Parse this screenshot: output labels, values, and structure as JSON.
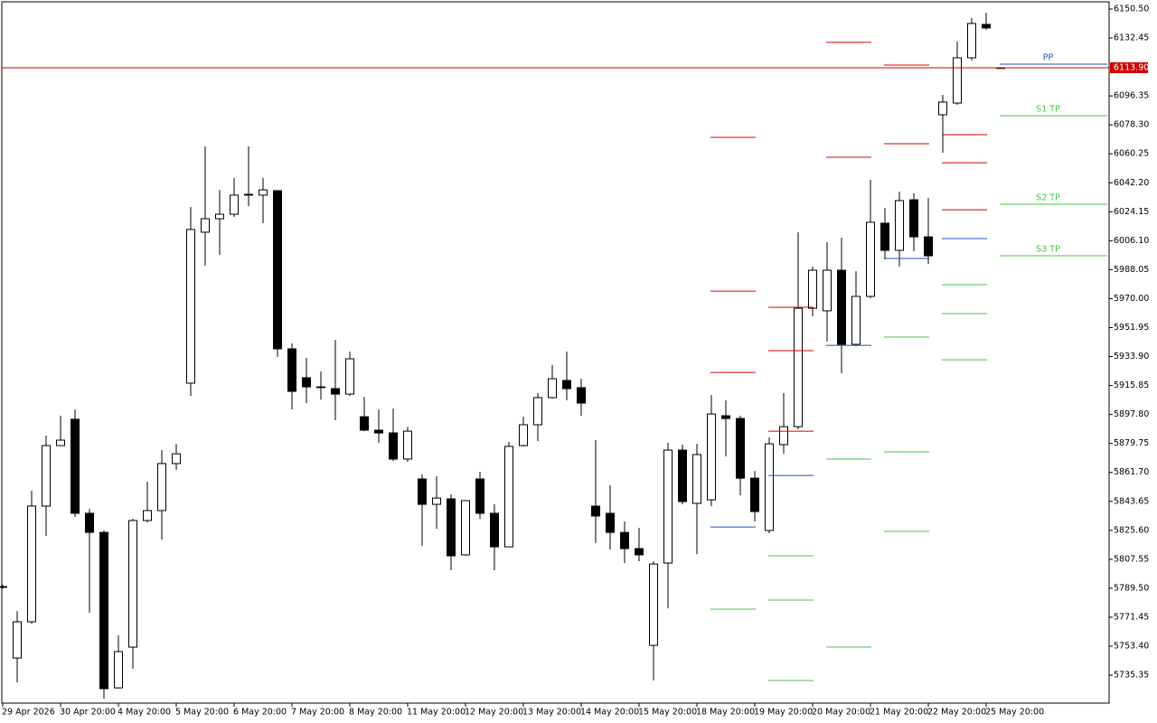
{
  "chart_data": {
    "type": "candlestick",
    "categories": [
      "29 Apr 2026",
      null,
      null,
      null,
      "30 Apr 20:00",
      null,
      null,
      null,
      "4 May 20:00",
      null,
      null,
      null,
      "5 May 20:00",
      null,
      null,
      null,
      "6 May 20:00",
      null,
      null,
      null,
      "7 May 20:00",
      null,
      null,
      null,
      "8 May 20:00",
      null,
      null,
      null,
      "11 May 20:00",
      null,
      null,
      null,
      "12 May 20:00",
      null,
      null,
      null,
      "13 May 20:00",
      null,
      null,
      null,
      "14 May 20:00",
      null,
      null,
      null,
      "15 May 20:00",
      null,
      null,
      null,
      "18 May 20:00",
      null,
      null,
      null,
      "19 May 20:00",
      null,
      null,
      null,
      "20 May 20:00",
      null,
      null,
      null,
      "21 May 20:00",
      null,
      null,
      null,
      "22 May 20:00",
      null,
      null,
      null,
      "25 May 20:00",
      null
    ],
    "open": [
      5790.5,
      5746.0,
      5768.6,
      5840.7,
      5878.4,
      5894.8,
      5836.2,
      5824.3,
      5727.4,
      5752.8,
      5831.7,
      5837.9,
      5867.2,
      5917.3,
      6011.4,
      6019.8,
      6022.6,
      6034.5,
      6034.5,
      6037.3,
      5938.7,
      5920.7,
      5915.0,
      5913.9,
      5910.5,
      5896.4,
      5888.0,
      5886.3,
      5870.0,
      5857.6,
      5841.8,
      5845.2,
      5810.3,
      5857.6,
      5836.2,
      5815.3,
      5878.4,
      5891.4,
      5908.3,
      5919.0,
      5914.5,
      5840.7,
      5836.2,
      5824.3,
      5814.2,
      5753.9,
      5805.2,
      5875.6,
      5842.4,
      5844.6,
      5897.0,
      5895.3,
      5858.1,
      5825.5,
      5879.0,
      5890.2,
      5964.0,
      5962.4,
      5987.7,
      5941.5,
      5971.4,
      6017.0,
      6000.1,
      6031.6,
      6008.5,
      6084.6,
      6091.9,
      6120.1,
      6140.9,
      6113.9
    ],
    "high": [
      5791.7,
      5775.3,
      5850.3,
      5884.6,
      5897.0,
      5900.9,
      5839.0,
      5825.5,
      5760.1,
      5832.8,
      5855.9,
      5875.6,
      5879.5,
      6027.1,
      6064.9,
      6037.8,
      6045.2,
      6064.9,
      6045.2,
      6037.3,
      5942.1,
      5933.1,
      5924.6,
      5944.3,
      5937.0,
      5908.8,
      5900.9,
      5901.5,
      5890.2,
      5860.4,
      5859.3,
      5848.0,
      5844.1,
      5862.1,
      5841.8,
      5880.7,
      5896.4,
      5911.1,
      5928.6,
      5937.0,
      5920.1,
      5881.8,
      5853.6,
      5831.1,
      5827.2,
      5806.3,
      5880.1,
      5879.0,
      5879.5,
      5910.0,
      5906.6,
      5897.0,
      5862.6,
      5883.5,
      5911.1,
      6011.4,
      5990.0,
      6005.2,
      6008.0,
      5987.1,
      6044.0,
      6026.6,
      6036.7,
      6035.6,
      6032.8,
      6097.0,
      6130.2,
      6144.9,
      6148.2,
      6113.9
    ],
    "low": [
      5789.4,
      5730.8,
      5767.4,
      5822.1,
      5878.4,
      5833.9,
      5774.2,
      5720.7,
      5726.9,
      5739.3,
      5830.5,
      5819.8,
      5863.2,
      5909.4,
      5990.5,
      5997.3,
      6020.9,
      6027.7,
      6017.0,
      5933.6,
      5900.9,
      5904.9,
      5907.1,
      5894.2,
      5909.4,
      5887.4,
      5880.1,
      5868.8,
      5868.3,
      5815.9,
      5826.6,
      5800.7,
      5809.7,
      5832.8,
      5800.7,
      5815.3,
      5877.9,
      5881.2,
      5907.7,
      5906.6,
      5897.0,
      5817.6,
      5813.6,
      5805.2,
      5806.3,
      5732.0,
      5777.0,
      5841.8,
      5810.8,
      5840.7,
      5871.7,
      5847.4,
      5831.1,
      5823.8,
      5873.3,
      5888.6,
      5959.0,
      5943.2,
      5923.5,
      5940.4,
      5970.2,
      5994.5,
      5990.0,
      5999.5,
      5991.6,
      6060.9,
      6090.8,
      6118.4,
      6137.5,
      6113.9
    ],
    "close": [
      5790.5,
      5768.6,
      5840.7,
      5878.4,
      5881.8,
      5836.2,
      5824.3,
      5726.9,
      5750.0,
      5831.7,
      5837.9,
      5867.2,
      5873.3,
      6013.1,
      6019.8,
      6022.6,
      6034.5,
      6035.0,
      6037.8,
      5938.7,
      5912.2,
      5915.0,
      5915.0,
      5910.5,
      5932.5,
      5888.0,
      5886.3,
      5870.0,
      5887.4,
      5841.8,
      5845.7,
      5809.7,
      5844.1,
      5836.2,
      5815.3,
      5877.9,
      5891.4,
      5908.3,
      5920.1,
      5913.9,
      5904.9,
      5834.5,
      5824.3,
      5814.2,
      5810.3,
      5804.6,
      5875.6,
      5843.5,
      5872.8,
      5898.1,
      5895.3,
      5858.1,
      5837.3,
      5879.5,
      5890.2,
      5964.0,
      5987.7,
      5987.7,
      5941.5,
      5971.4,
      6017.6,
      6000.1,
      6031.1,
      6008.5,
      5996.7,
      6092.5,
      6120.1,
      6141.5,
      6138.7,
      6113.9
    ],
    "bull_color": "#ffffff",
    "bear_color": "#000000",
    "outline_color": "#000000",
    "ylim": [
      5717.9,
      6155.0
    ],
    "yticks": [
      {
        "value": 6150.5,
        "label": "6150.50"
      },
      {
        "value": 6132.45,
        "label": "6132.45"
      },
      {
        "value": 6096.35,
        "label": "6096.35"
      },
      {
        "value": 6078.3,
        "label": "6078.30"
      },
      {
        "value": 6060.25,
        "label": "6060.25"
      },
      {
        "value": 6042.2,
        "label": "6042.20"
      },
      {
        "value": 6024.15,
        "label": "6024.15"
      },
      {
        "value": 6006.1,
        "label": "6006.10"
      },
      {
        "value": 5988.05,
        "label": "5988.05"
      },
      {
        "value": 5970,
        "label": "5970.00"
      },
      {
        "value": 5951.95,
        "label": "5951.95"
      },
      {
        "value": 5933.9,
        "label": "5933.90"
      },
      {
        "value": 5915.85,
        "label": "5915.85"
      },
      {
        "value": 5897.8,
        "label": "5897.80"
      },
      {
        "value": 5879.75,
        "label": "5879.75"
      },
      {
        "value": 5861.7,
        "label": "5861.70"
      },
      {
        "value": 5843.65,
        "label": "5843.65"
      },
      {
        "value": 5825.6,
        "label": "5825.60"
      },
      {
        "value": 5807.55,
        "label": "5807.55"
      },
      {
        "value": 5789.5,
        "label": "5789.50"
      },
      {
        "value": 5771.45,
        "label": "5771.45"
      },
      {
        "value": 5753.4,
        "label": "5753.40"
      },
      {
        "value": 5735.35,
        "label": "5735.35"
      }
    ],
    "price_line": {
      "value": 6113.9,
      "label": "6113.90",
      "color": "#cc0000"
    },
    "pivot_colors": {
      "r": "#d40000",
      "pp": "#1d4fb5",
      "s": "#44c544"
    },
    "pivots": [
      {
        "r": [
          6070.5,
          5974.7,
          5924.0
        ],
        "pp": 5827.7,
        "s": [
          5776.5
        ]
      },
      {
        "r": [
          5964.6,
          5937.6,
          5887.4
        ],
        "pp": 5859.8,
        "s": [
          5809.7,
          5782.1,
          5732.0
        ]
      },
      {
        "r": [
          6129.7,
          6058.1
        ],
        "pp": 5940.9,
        "s": [
          5870.0,
          5752.8
        ]
      },
      {
        "r": [
          6115.6,
          6066.6
        ],
        "pp": 5995.0,
        "s": [
          5946.0,
          5874.5,
          5824.9
        ]
      },
      {
        "r": [
          6072.2,
          6054.7,
          6025.4
        ],
        "pp": 6007.4,
        "s": [
          5978.7,
          5960.7,
          5931.9
        ]
      },
      {
        "r": [],
        "pp": {
          "value": 6116.1,
          "label": "PP"
        },
        "s": [
          {
            "value": 6084.0,
            "label": "S1 TP"
          },
          {
            "value": 6028.8,
            "label": "S2 TP"
          },
          {
            "value": 5996.7,
            "label": "S3 TP"
          }
        ]
      }
    ]
  }
}
